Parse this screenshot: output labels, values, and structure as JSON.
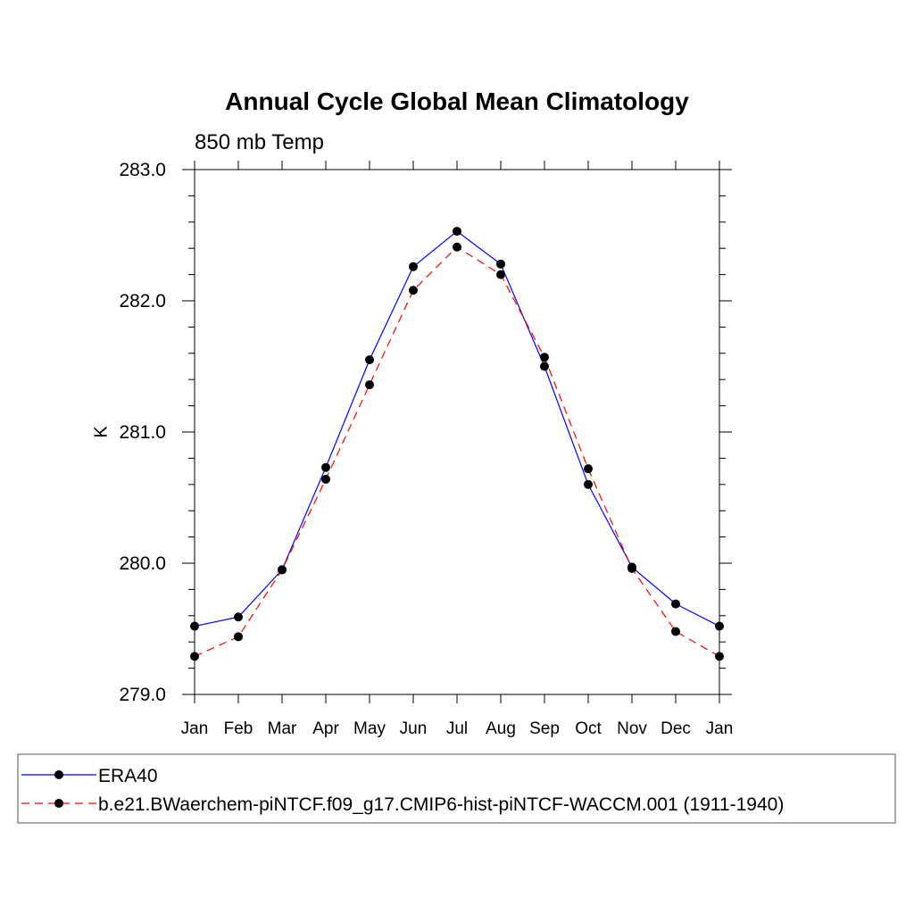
{
  "chart_data": {
    "type": "line",
    "title": "Annual Cycle Global Mean Climatology",
    "subtitle": "850 mb Temp",
    "xlabel": "",
    "ylabel": "K",
    "categories": [
      "Jan",
      "Feb",
      "Mar",
      "Apr",
      "May",
      "Jun",
      "Jul",
      "Aug",
      "Sep",
      "Oct",
      "Nov",
      "Dec",
      "Jan"
    ],
    "ylim": [
      279.0,
      283.0
    ],
    "yticks": [
      "279.0",
      "280.0",
      "281.0",
      "282.0",
      "283.0"
    ],
    "grid": false,
    "legend_position": "bottom",
    "series": [
      {
        "name": "ERA40",
        "color": "#0000ff",
        "dash": "solid",
        "marker": "circle",
        "values": [
          279.52,
          279.59,
          279.95,
          280.73,
          281.55,
          282.26,
          282.53,
          282.28,
          281.5,
          280.6,
          279.97,
          279.69,
          279.52
        ]
      },
      {
        "name": "b.e21.BWaerchem-piNTCF.f09_g17.CMIP6-hist-piNTCF-WACCM.001 (1911-1940)",
        "color": "#ff0000",
        "dash": "dashed",
        "marker": "circle",
        "values": [
          279.29,
          279.44,
          279.95,
          280.64,
          281.36,
          282.08,
          282.41,
          282.2,
          281.57,
          280.72,
          279.96,
          279.48,
          279.29
        ]
      }
    ]
  }
}
